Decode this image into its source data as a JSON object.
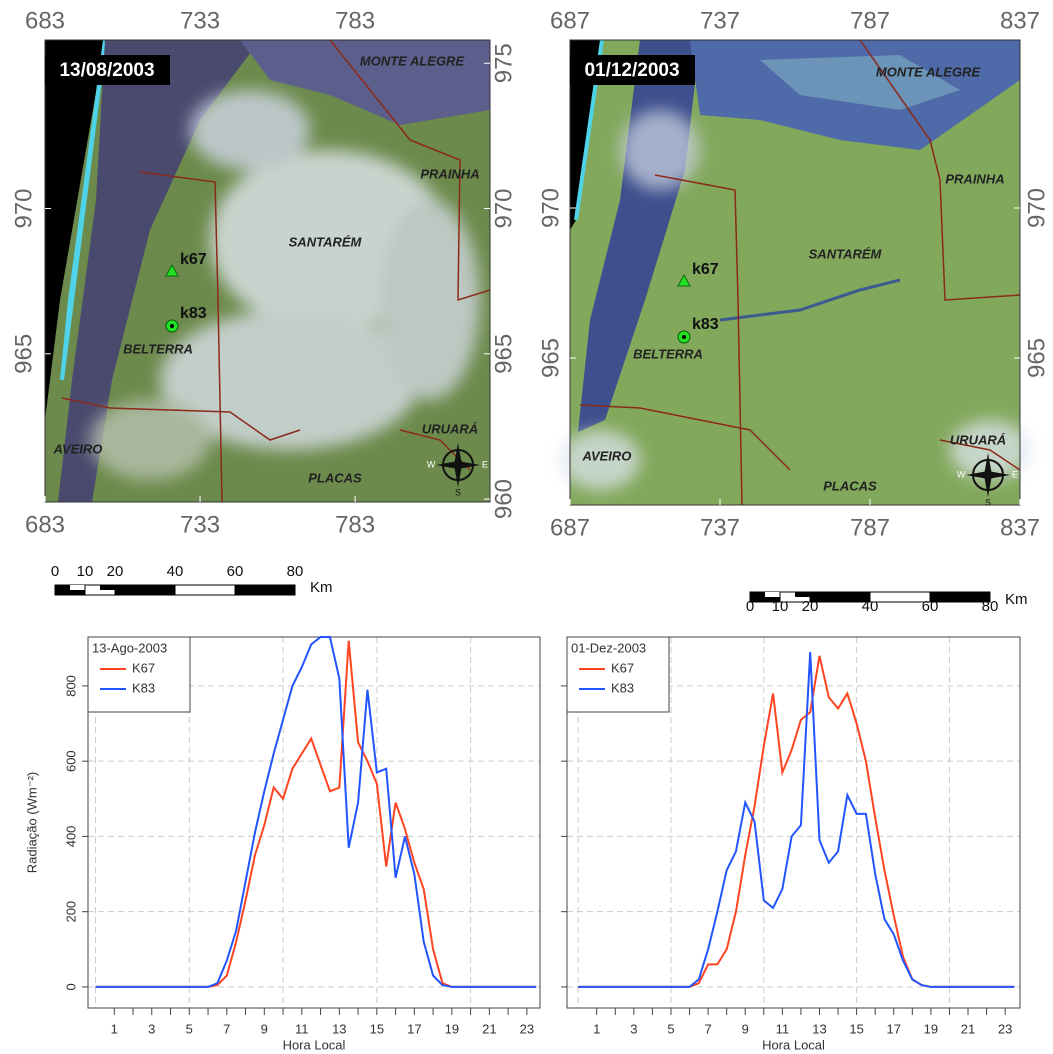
{
  "maps": [
    {
      "date": "13/08/2003",
      "xlim": [
        683,
        826.5
      ],
      "ylim": [
        959.9,
        975.8
      ],
      "xticks": [
        683,
        733,
        783
      ],
      "yticks_left": [
        965,
        970
      ],
      "yticks_right": [
        960,
        965,
        970,
        975
      ],
      "places": [
        "MONTE ALEGRE",
        "PRAINHA",
        "SANTARÉM",
        "BELTERRA",
        "AVEIRO",
        "URUARÁ",
        "PLACAS"
      ],
      "sites": [
        "k67",
        "k83"
      ],
      "compass": {
        "w": "W",
        "e": "E",
        "s": "S"
      },
      "scale_bar": {
        "ticks": [
          0,
          10,
          20,
          40,
          60,
          80
        ],
        "unit": "Km"
      }
    },
    {
      "date": "01/12/2003",
      "xlim": [
        687,
        837
      ],
      "ylim": [
        960.1,
        975.6
      ],
      "xticks": [
        687,
        737,
        787,
        837
      ],
      "yticks_left": [
        965,
        970
      ],
      "yticks_right": [
        965,
        970
      ],
      "places": [
        "MONTE ALEGRE",
        "PRAINHA",
        "SANTARÉM",
        "BELTERRA",
        "AVEIRO",
        "URUARÁ",
        "PLACAS"
      ],
      "sites": [
        "k67",
        "k83"
      ],
      "compass": {
        "w": "W",
        "e": "E",
        "s": "S"
      },
      "scale_bar": {
        "ticks": [
          0,
          10,
          20,
          40,
          60,
          80
        ],
        "unit": "Km"
      }
    }
  ],
  "chart_data": [
    {
      "type": "line",
      "legend_title": "13-Ago-2003",
      "ylabel": "Radiação (Wm⁻²)",
      "xlabel": "Hora Local",
      "x": [
        0,
        6,
        6.5,
        7,
        7.5,
        8,
        8.5,
        9,
        9.5,
        10,
        10.5,
        11,
        11.5,
        12,
        12.5,
        13,
        13.5,
        14,
        14.5,
        15,
        15.5,
        16,
        16.5,
        17,
        17.5,
        18,
        18.5,
        19,
        23.5
      ],
      "series": [
        {
          "name": "K67",
          "color": "#ff4422",
          "values": [
            0,
            0,
            5,
            30,
            120,
            230,
            350,
            430,
            530,
            500,
            580,
            620,
            660,
            590,
            520,
            530,
            920,
            650,
            600,
            540,
            320,
            490,
            420,
            330,
            260,
            100,
            10,
            0,
            0
          ]
        },
        {
          "name": "K83",
          "color": "#2255ff",
          "values": [
            0,
            0,
            10,
            70,
            150,
            280,
            410,
            520,
            620,
            710,
            800,
            850,
            910,
            930,
            930,
            820,
            370,
            490,
            790,
            570,
            580,
            290,
            400,
            300,
            120,
            30,
            5,
            0,
            0
          ]
        }
      ],
      "xlim": [
        -0.4,
        23.7
      ],
      "ylim": [
        -56,
        930
      ],
      "xticks": [
        1,
        3,
        5,
        7,
        9,
        11,
        13,
        15,
        17,
        19,
        21,
        23
      ],
      "xticks_minor": [
        2,
        4,
        6,
        8,
        10,
        12,
        14,
        16,
        18,
        20,
        22
      ],
      "xgrid": [
        0,
        5,
        10,
        15,
        20
      ],
      "yticks": [
        0,
        200,
        400,
        600,
        800
      ],
      "ytick_labels": true,
      "grid": true
    },
    {
      "type": "line",
      "legend_title": "01-Dez-2003",
      "xlabel": "Hora Local",
      "x": [
        0,
        6,
        6.5,
        7,
        7.5,
        8,
        8.5,
        9,
        9.5,
        10,
        10.5,
        11,
        11.5,
        12,
        12.5,
        13,
        13.5,
        14,
        14.5,
        15,
        15.5,
        16,
        16.5,
        17,
        17.5,
        18,
        18.5,
        19,
        23.5
      ],
      "series": [
        {
          "name": "K67",
          "color": "#ff4422",
          "values": [
            0,
            0,
            10,
            60,
            60,
            100,
            200,
            350,
            480,
            640,
            780,
            570,
            630,
            710,
            730,
            880,
            770,
            740,
            780,
            700,
            600,
            450,
            310,
            190,
            80,
            20,
            5,
            0,
            0
          ]
        },
        {
          "name": "K83",
          "color": "#2255ff",
          "values": [
            0,
            0,
            20,
            100,
            200,
            310,
            360,
            490,
            440,
            230,
            210,
            260,
            400,
            430,
            890,
            390,
            330,
            360,
            510,
            460,
            460,
            300,
            180,
            140,
            70,
            20,
            5,
            0,
            0
          ]
        }
      ],
      "xlim": [
        -0.6,
        23.8
      ],
      "ylim": [
        -56,
        930
      ],
      "xticks": [
        1,
        3,
        5,
        7,
        9,
        11,
        13,
        15,
        17,
        19,
        21,
        23
      ],
      "xticks_minor": [
        2,
        4,
        6,
        8,
        10,
        12,
        14,
        16,
        18,
        20,
        22
      ],
      "xgrid": [
        0,
        5,
        10,
        15,
        20
      ],
      "yticks": [
        0,
        200,
        400,
        600,
        800
      ],
      "ytick_labels": false,
      "grid": true
    }
  ]
}
